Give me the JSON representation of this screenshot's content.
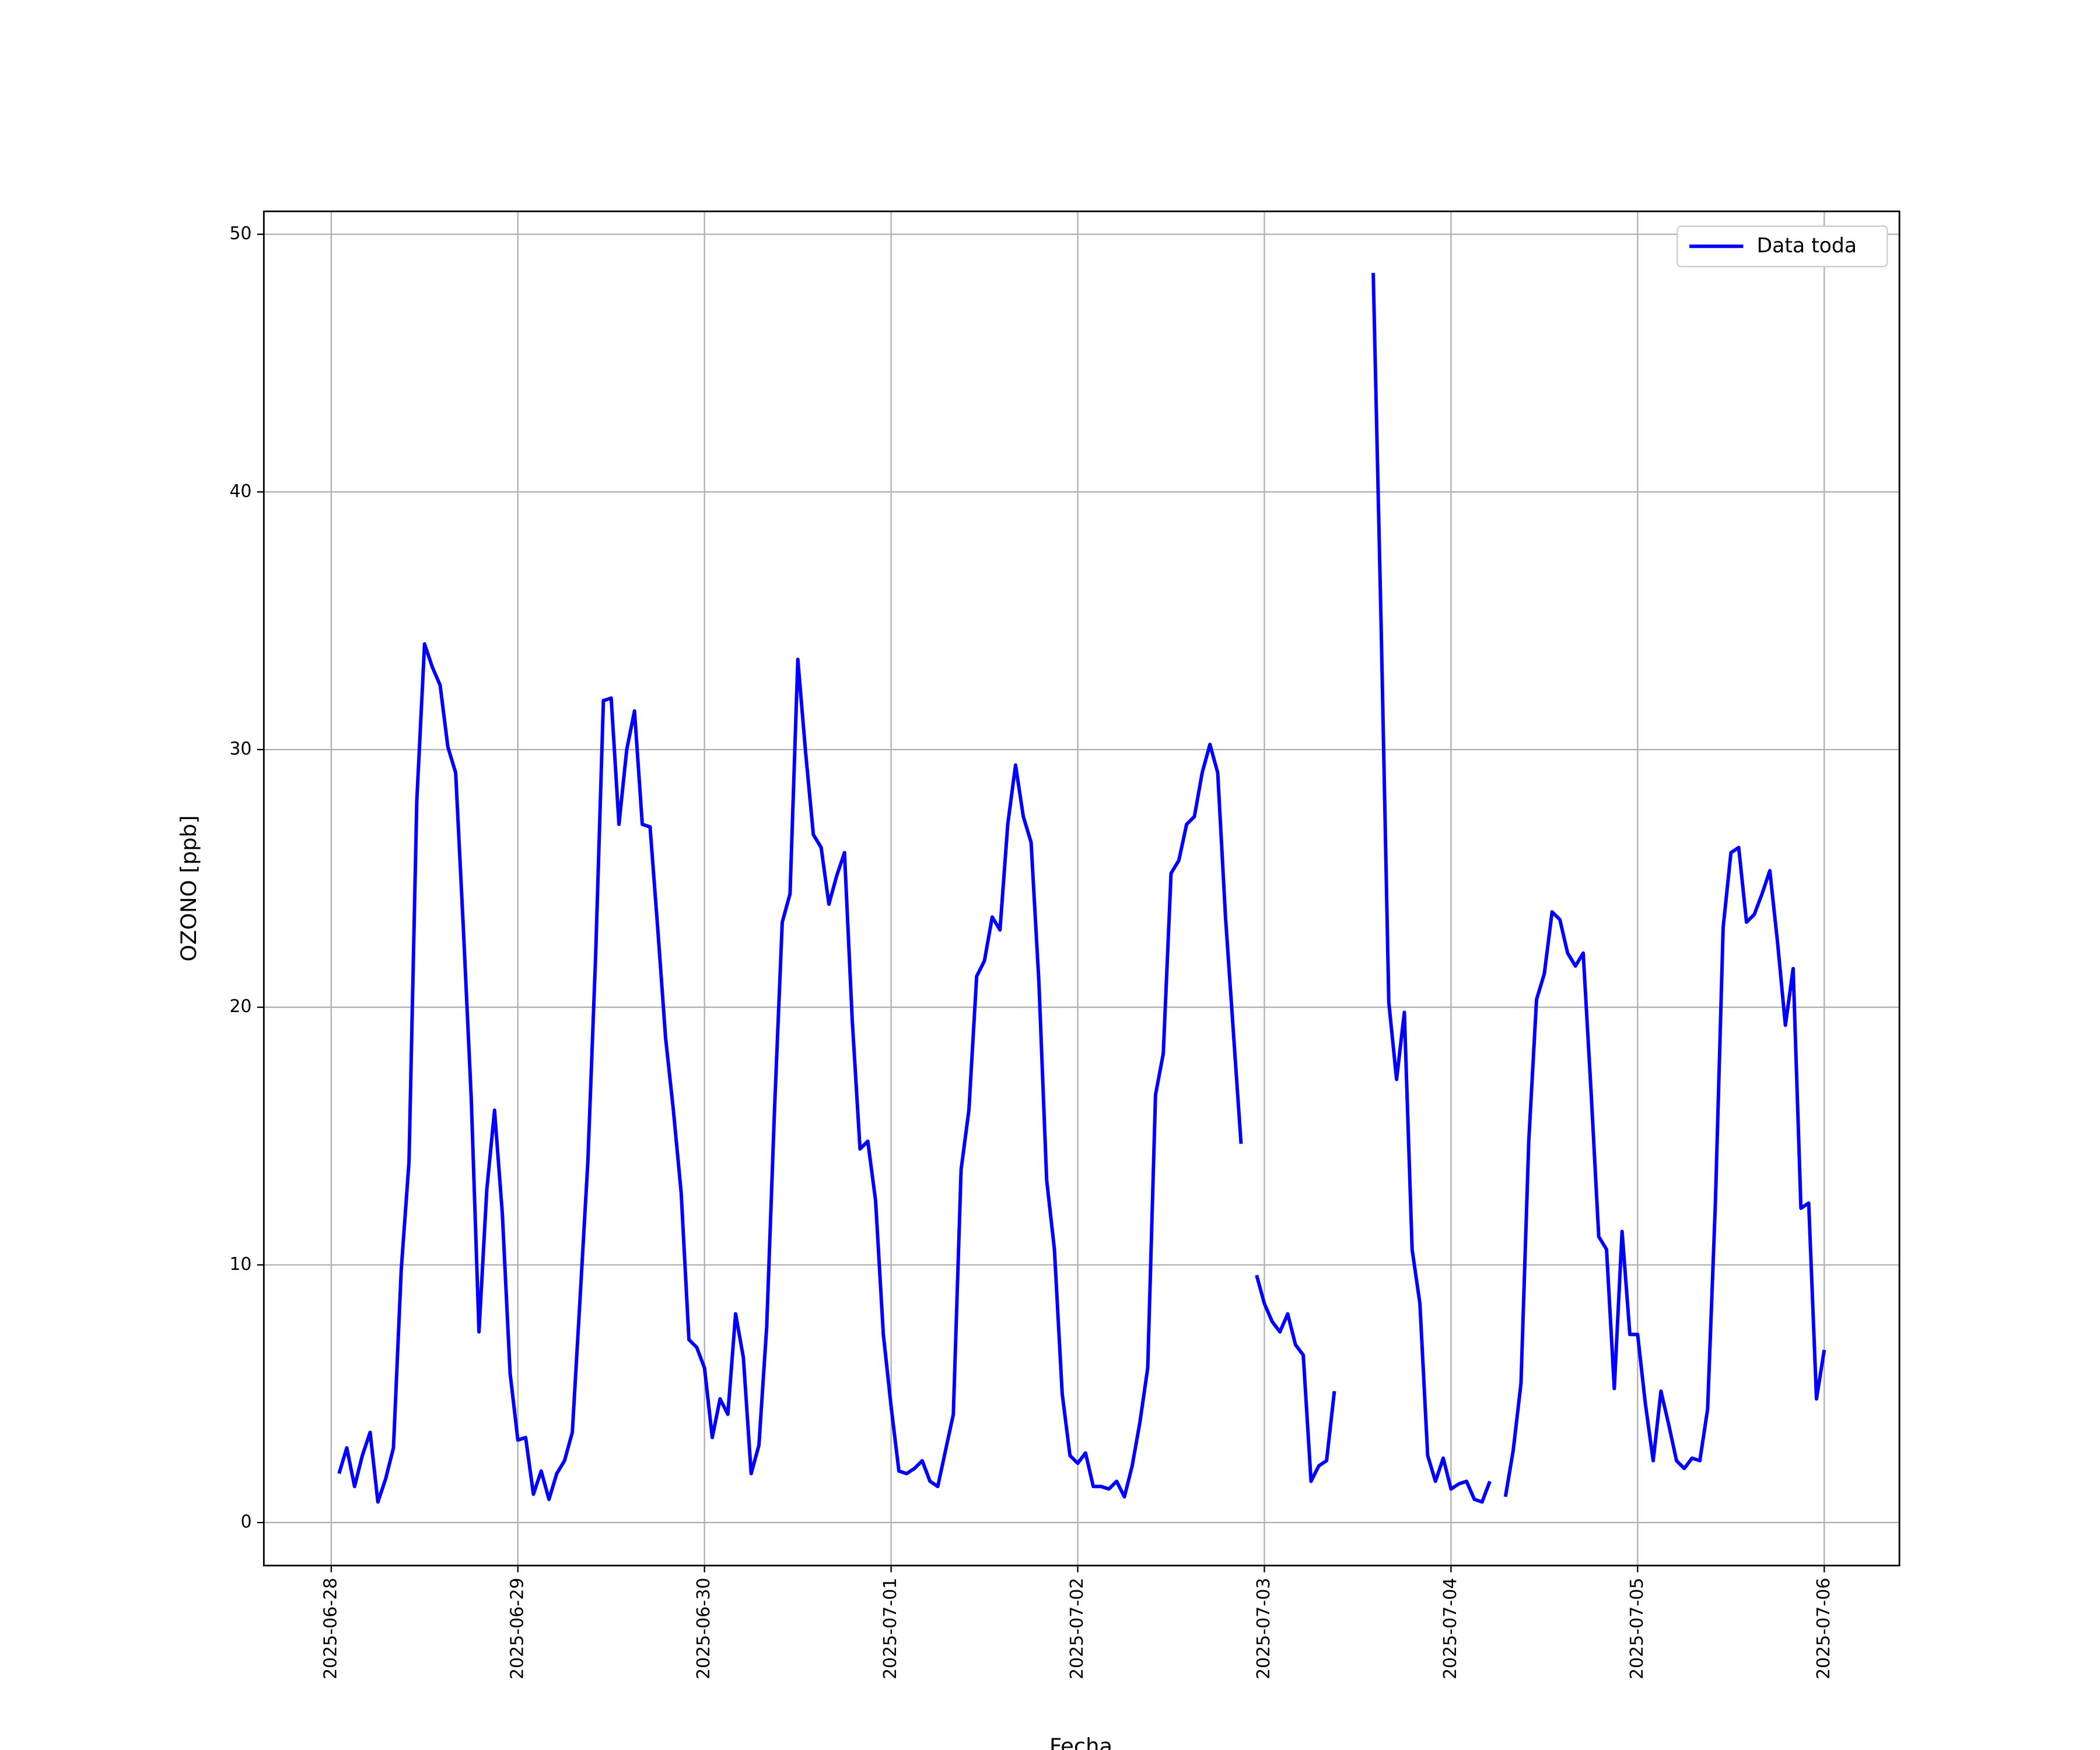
{
  "chart_data": {
    "type": "line",
    "xlabel": "Fecha",
    "ylabel": "OZONO [ppb]",
    "x": [
      "2025-06-28 01:00",
      "2025-06-28 02:00",
      "2025-06-28 03:00",
      "2025-06-28 04:00",
      "2025-06-28 05:00",
      "2025-06-28 06:00",
      "2025-06-28 07:00",
      "2025-06-28 08:00",
      "2025-06-28 09:00",
      "2025-06-28 10:00",
      "2025-06-28 11:00",
      "2025-06-28 12:00",
      "2025-06-28 13:00",
      "2025-06-28 14:00",
      "2025-06-28 15:00",
      "2025-06-28 16:00",
      "2025-06-28 17:00",
      "2025-06-28 18:00",
      "2025-06-28 19:00",
      "2025-06-28 20:00",
      "2025-06-28 21:00",
      "2025-06-28 22:00",
      "2025-06-28 23:00",
      "2025-06-29 00:00",
      "2025-06-29 01:00",
      "2025-06-29 02:00",
      "2025-06-29 03:00",
      "2025-06-29 04:00",
      "2025-06-29 05:00",
      "2025-06-29 06:00",
      "2025-06-29 07:00",
      "2025-06-29 08:00",
      "2025-06-29 09:00",
      "2025-06-29 10:00",
      "2025-06-29 11:00",
      "2025-06-29 12:00",
      "2025-06-29 13:00",
      "2025-06-29 14:00",
      "2025-06-29 15:00",
      "2025-06-29 16:00",
      "2025-06-29 17:00",
      "2025-06-29 18:00",
      "2025-06-29 19:00",
      "2025-06-29 20:00",
      "2025-06-29 21:00",
      "2025-06-29 22:00",
      "2025-06-29 23:00",
      "2025-06-30 00:00",
      "2025-06-30 01:00",
      "2025-06-30 02:00",
      "2025-06-30 03:00",
      "2025-06-30 04:00",
      "2025-06-30 05:00",
      "2025-06-30 06:00",
      "2025-06-30 07:00",
      "2025-06-30 08:00",
      "2025-06-30 09:00",
      "2025-06-30 10:00",
      "2025-06-30 11:00",
      "2025-06-30 12:00",
      "2025-06-30 13:00",
      "2025-06-30 14:00",
      "2025-06-30 15:00",
      "2025-06-30 16:00",
      "2025-06-30 17:00",
      "2025-06-30 18:00",
      "2025-06-30 19:00",
      "2025-06-30 20:00",
      "2025-06-30 21:00",
      "2025-06-30 22:00",
      "2025-06-30 23:00",
      "2025-07-01 00:00",
      "2025-07-01 01:00",
      "2025-07-01 02:00",
      "2025-07-01 03:00",
      "2025-07-01 04:00",
      "2025-07-01 05:00",
      "2025-07-01 06:00",
      "2025-07-01 07:00",
      "2025-07-01 08:00",
      "2025-07-01 09:00",
      "2025-07-01 10:00",
      "2025-07-01 11:00",
      "2025-07-01 12:00",
      "2025-07-01 13:00",
      "2025-07-01 14:00",
      "2025-07-01 15:00",
      "2025-07-01 16:00",
      "2025-07-01 17:00",
      "2025-07-01 18:00",
      "2025-07-01 19:00",
      "2025-07-01 20:00",
      "2025-07-01 21:00",
      "2025-07-01 22:00",
      "2025-07-01 23:00",
      "2025-07-02 00:00",
      "2025-07-02 01:00",
      "2025-07-02 02:00",
      "2025-07-02 03:00",
      "2025-07-02 04:00",
      "2025-07-02 05:00",
      "2025-07-02 06:00",
      "2025-07-02 07:00",
      "2025-07-02 08:00",
      "2025-07-02 09:00",
      "2025-07-02 10:00",
      "2025-07-02 11:00",
      "2025-07-02 12:00",
      "2025-07-02 13:00",
      "2025-07-02 14:00",
      "2025-07-02 15:00",
      "2025-07-02 16:00",
      "2025-07-02 17:00",
      "2025-07-02 18:00",
      "2025-07-02 19:00",
      "2025-07-02 20:00",
      "2025-07-02 21:00",
      "2025-07-02 22:00",
      "2025-07-02 23:00",
      "2025-07-03 00:00",
      "2025-07-03 01:00",
      "2025-07-03 02:00",
      "2025-07-03 03:00",
      "2025-07-03 04:00",
      "2025-07-03 05:00",
      "2025-07-03 06:00",
      "2025-07-03 07:00",
      "2025-07-03 08:00",
      "2025-07-03 09:00",
      "2025-07-03 10:00",
      "2025-07-03 11:00",
      "2025-07-03 12:00",
      "2025-07-03 13:00",
      "2025-07-03 14:00",
      "2025-07-03 15:00",
      "2025-07-03 16:00",
      "2025-07-03 17:00",
      "2025-07-03 18:00",
      "2025-07-03 19:00",
      "2025-07-03 20:00",
      "2025-07-03 21:00",
      "2025-07-03 22:00",
      "2025-07-03 23:00",
      "2025-07-04 00:00",
      "2025-07-04 01:00",
      "2025-07-04 02:00",
      "2025-07-04 03:00",
      "2025-07-04 04:00",
      "2025-07-04 05:00",
      "2025-07-04 06:00",
      "2025-07-04 07:00",
      "2025-07-04 08:00",
      "2025-07-04 09:00",
      "2025-07-04 10:00",
      "2025-07-04 11:00",
      "2025-07-04 12:00",
      "2025-07-04 13:00",
      "2025-07-04 14:00",
      "2025-07-04 15:00",
      "2025-07-04 16:00",
      "2025-07-04 17:00",
      "2025-07-04 18:00",
      "2025-07-04 19:00",
      "2025-07-04 20:00",
      "2025-07-04 21:00",
      "2025-07-04 22:00",
      "2025-07-04 23:00",
      "2025-07-05 00:00",
      "2025-07-05 01:00",
      "2025-07-05 02:00",
      "2025-07-05 03:00",
      "2025-07-05 04:00",
      "2025-07-05 05:00",
      "2025-07-05 06:00",
      "2025-07-05 07:00",
      "2025-07-05 08:00",
      "2025-07-05 09:00",
      "2025-07-05 10:00",
      "2025-07-05 11:00",
      "2025-07-05 12:00",
      "2025-07-05 13:00",
      "2025-07-05 14:00",
      "2025-07-05 15:00",
      "2025-07-05 16:00",
      "2025-07-05 17:00",
      "2025-07-05 18:00",
      "2025-07-05 19:00",
      "2025-07-05 20:00",
      "2025-07-05 21:00",
      "2025-07-05 22:00",
      "2025-07-05 23:00",
      "2025-07-06 00:00"
    ],
    "series": [
      {
        "name": "Data toda",
        "color": "#0000ff",
        "values": [
          1.9,
          2.9,
          1.4,
          2.6,
          3.5,
          0.8,
          1.7,
          2.9,
          9.8,
          14.0,
          28.0,
          34.1,
          33.2,
          32.5,
          30.1,
          29.1,
          23.0,
          16.5,
          7.4,
          12.9,
          16.0,
          12.0,
          5.8,
          3.2,
          3.3,
          1.1,
          2.0,
          0.9,
          1.9,
          2.4,
          3.5,
          8.7,
          14.0,
          22.0,
          31.9,
          32.0,
          27.1,
          30.0,
          31.5,
          27.1,
          27.0,
          23.0,
          18.8,
          16.0,
          12.8,
          7.1,
          6.8,
          6.0,
          3.3,
          4.8,
          4.2,
          8.1,
          6.4,
          1.9,
          3.0,
          7.6,
          16.0,
          23.3,
          24.4,
          33.5,
          29.9,
          26.7,
          26.2,
          24.0,
          25.1,
          26.0,
          19.5,
          14.5,
          14.8,
          12.5,
          7.3,
          4.5,
          2.0,
          1.9,
          2.1,
          2.4,
          1.6,
          1.4,
          2.8,
          4.2,
          13.7,
          16.0,
          21.2,
          21.8,
          23.5,
          23.0,
          27.1,
          29.4,
          27.4,
          26.4,
          21.0,
          13.3,
          10.6,
          5.0,
          2.6,
          2.3,
          2.7,
          1.4,
          1.4,
          1.3,
          1.6,
          1.0,
          2.2,
          3.9,
          6.0,
          16.6,
          18.2,
          25.2,
          25.7,
          27.1,
          27.4,
          29.1,
          30.2,
          29.1,
          23.5,
          19.1,
          14.7,
          null,
          9.6,
          8.5,
          7.8,
          7.4,
          8.1,
          6.9,
          6.5,
          1.6,
          2.2,
          2.4,
          5.1,
          null,
          null,
          null,
          null,
          48.5,
          35.0,
          20.2,
          17.2,
          19.8,
          10.6,
          8.5,
          2.6,
          1.6,
          2.5,
          1.3,
          1.5,
          1.6,
          0.9,
          0.8,
          1.6,
          null,
          1.0,
          2.8,
          5.4,
          14.8,
          20.3,
          21.3,
          23.7,
          23.4,
          22.1,
          21.6,
          22.1,
          16.8,
          11.1,
          10.6,
          5.2,
          11.3,
          7.3,
          7.3,
          4.6,
          2.4,
          5.1,
          3.8,
          2.4,
          2.1,
          2.5,
          2.4,
          4.4,
          12.4,
          23.1,
          26.0,
          26.2,
          23.3,
          23.6,
          24.4,
          25.3,
          22.5,
          19.3,
          21.5,
          12.2,
          12.4,
          4.8,
          6.7
        ]
      }
    ],
    "xlim": [
      "2025-06-27 15:20",
      "2025-07-06 09:40"
    ],
    "xticks": [
      "2025-06-28",
      "2025-06-29",
      "2025-06-30",
      "2025-07-01",
      "2025-07-02",
      "2025-07-03",
      "2025-07-04",
      "2025-07-05",
      "2025-07-06"
    ],
    "ylim": [
      -1.67,
      50.89
    ],
    "yticks": [
      0,
      10,
      20,
      30,
      40,
      50
    ],
    "grid": true,
    "legend": "upper right"
  }
}
